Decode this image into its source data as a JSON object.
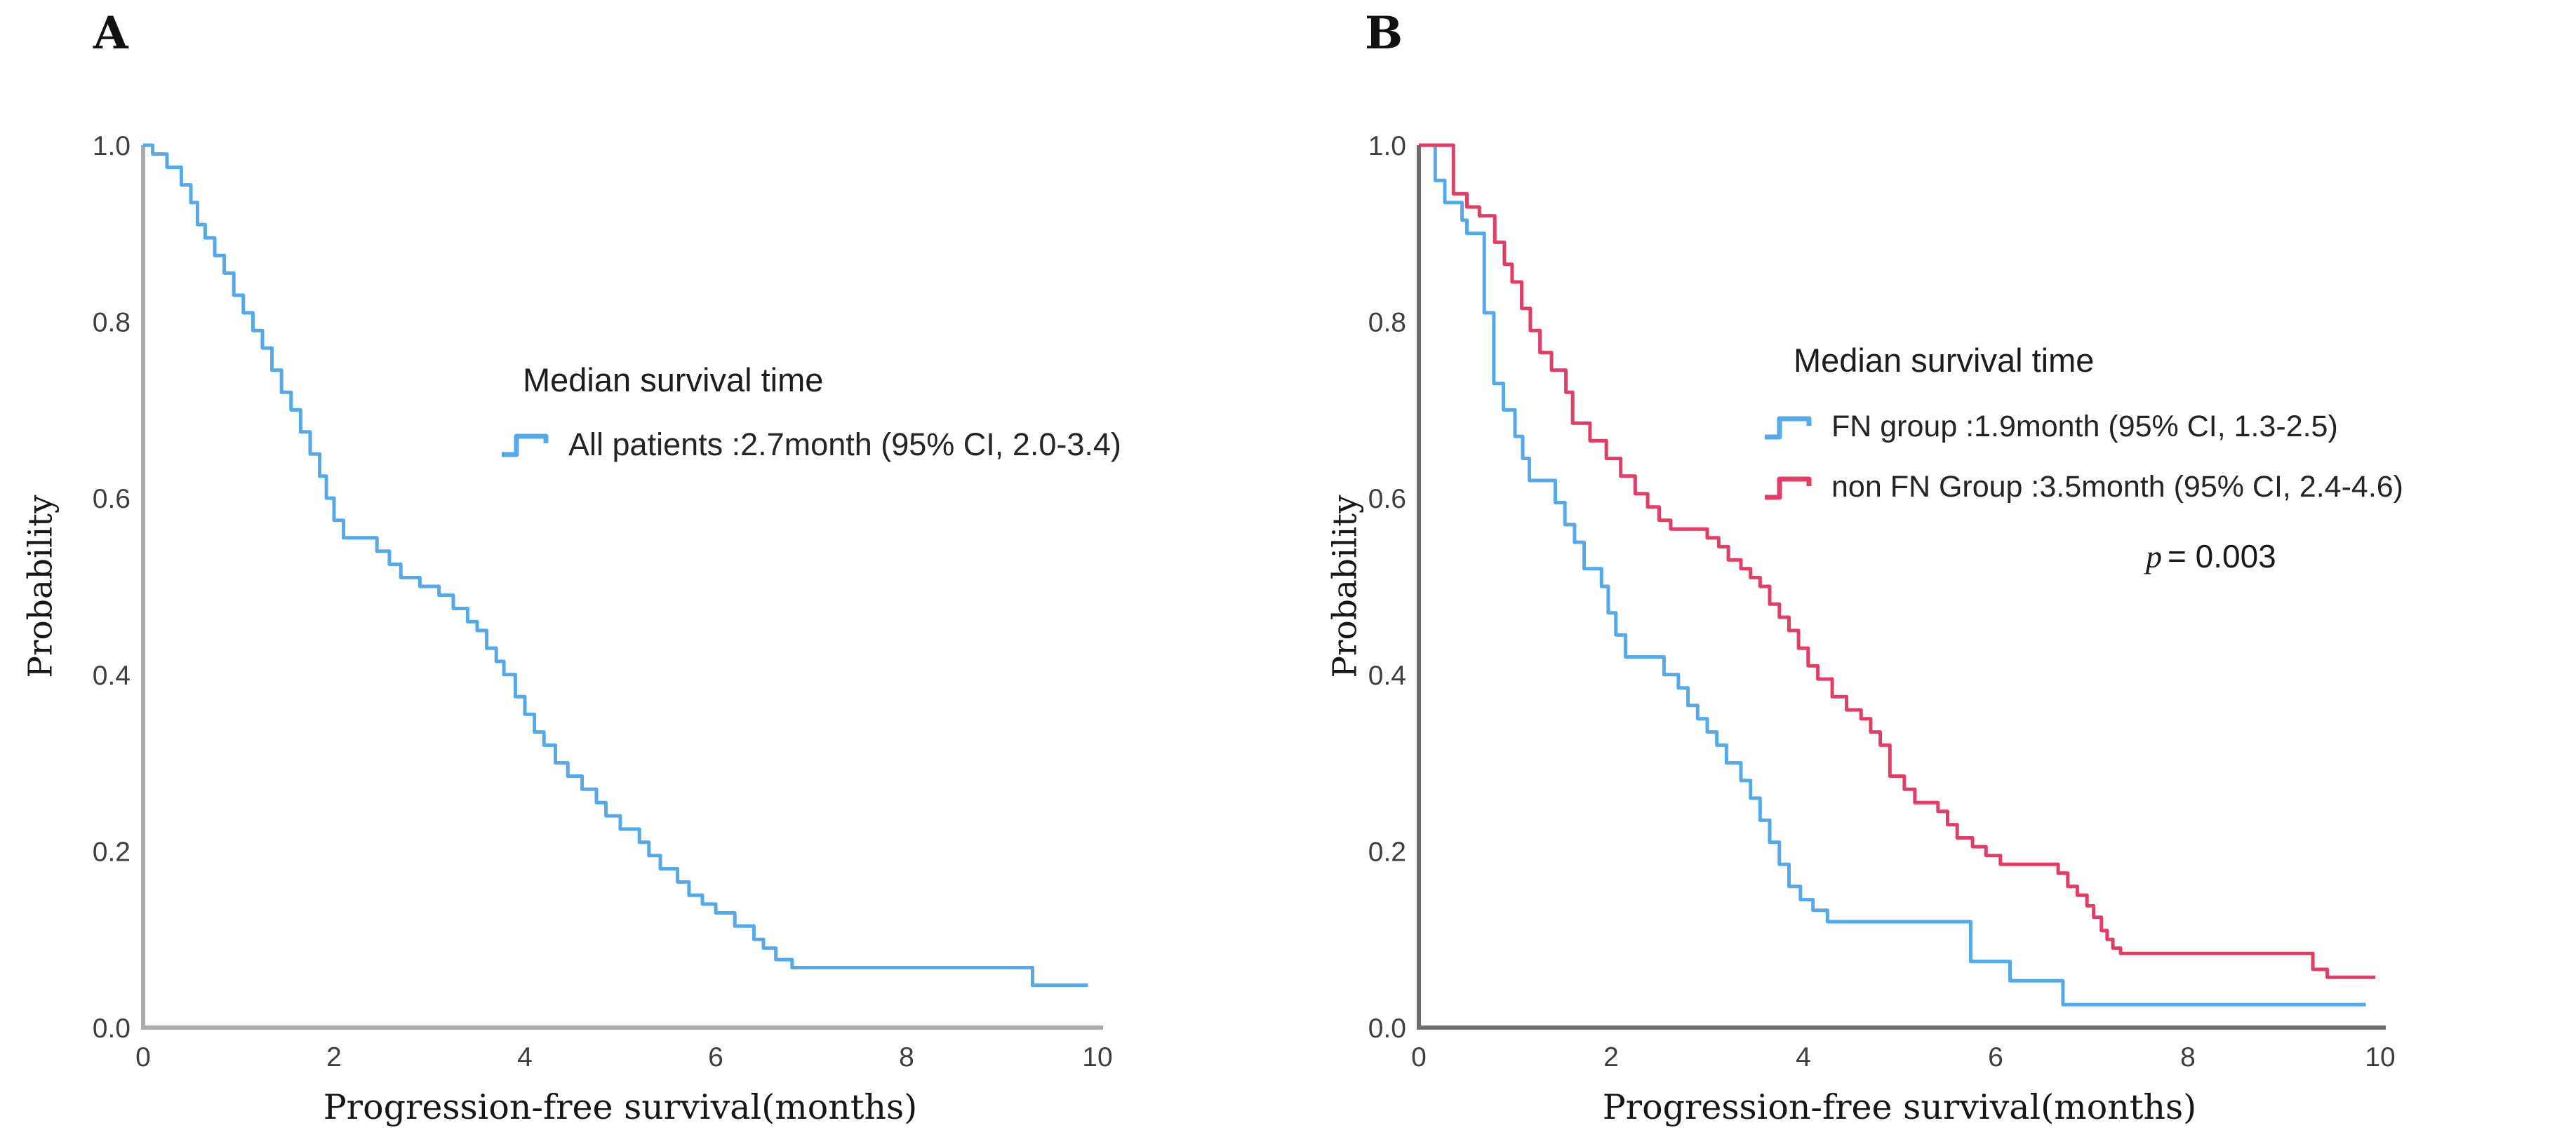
{
  "panels": [
    {
      "panel_label": "A",
      "y_axis_title": "Probability",
      "x_axis_title": "Progression-free survival(months)",
      "legend_title": "Median survival time",
      "legend_items": [
        {
          "label": "All patients :2.7month (95% CI, 2.0-3.4)"
        }
      ]
    },
    {
      "panel_label": "B",
      "y_axis_title": "Probability",
      "x_axis_title": "Progression-free survival(months)",
      "legend_title": "Median survival time",
      "legend_items": [
        {
          "label": "FN group :1.9month (95% CI, 1.3-2.5)"
        },
        {
          "label": "non FN Group :3.5month (95% CI, 2.4-4.6)"
        }
      ],
      "p_value": {
        "symbol": "p",
        "text": "= 0.003"
      }
    }
  ],
  "colors": {
    "all_patients": "#55A9E8",
    "fn_group": "#55A9E8",
    "non_fn_group": "#E03E64",
    "axis_panel_a": "#ABABAB",
    "axis_panel_b": "#6E6E6E",
    "tick_text": "#3E3E3E"
  },
  "chart_data": [
    {
      "type": "line",
      "subtype": "kaplan-meier-step",
      "panel": "A",
      "title": "",
      "xlabel": "Progression-free survival(months)",
      "ylabel": "Probability",
      "xlim": [
        0,
        10
      ],
      "ylim": [
        0,
        1
      ],
      "xticks": [
        "0",
        "2",
        "4",
        "6",
        "8",
        "10"
      ],
      "yticks": [
        "0.0",
        "0.2",
        "0.4",
        "0.6",
        "0.8",
        "1.0"
      ],
      "grid": false,
      "legend_title": "Median survival time",
      "legend_position": "center-right",
      "series": [
        {
          "name": "All patients",
          "label": "All patients :2.7month (95% CI, 2.0-3.4)",
          "median_months": 2.7,
          "ci95": [
            2.0,
            3.4
          ],
          "color": "#55A9E8",
          "points": [
            [
              0,
              1.0
            ],
            [
              0.1,
              0.99
            ],
            [
              0.25,
              0.975
            ],
            [
              0.4,
              0.955
            ],
            [
              0.5,
              0.935
            ],
            [
              0.57,
              0.91
            ],
            [
              0.65,
              0.895
            ],
            [
              0.75,
              0.875
            ],
            [
              0.85,
              0.855
            ],
            [
              0.95,
              0.83
            ],
            [
              1.05,
              0.81
            ],
            [
              1.15,
              0.79
            ],
            [
              1.25,
              0.77
            ],
            [
              1.35,
              0.745
            ],
            [
              1.45,
              0.72
            ],
            [
              1.55,
              0.7
            ],
            [
              1.65,
              0.675
            ],
            [
              1.75,
              0.65
            ],
            [
              1.85,
              0.625
            ],
            [
              1.92,
              0.6
            ],
            [
              2.0,
              0.575
            ],
            [
              2.1,
              0.555
            ],
            [
              2.45,
              0.54
            ],
            [
              2.58,
              0.525
            ],
            [
              2.7,
              0.51
            ],
            [
              2.9,
              0.5
            ],
            [
              3.1,
              0.49
            ],
            [
              3.25,
              0.475
            ],
            [
              3.4,
              0.46
            ],
            [
              3.5,
              0.45
            ],
            [
              3.6,
              0.43
            ],
            [
              3.7,
              0.415
            ],
            [
              3.78,
              0.4
            ],
            [
              3.9,
              0.375
            ],
            [
              4.0,
              0.355
            ],
            [
              4.1,
              0.335
            ],
            [
              4.2,
              0.32
            ],
            [
              4.32,
              0.3
            ],
            [
              4.45,
              0.285
            ],
            [
              4.6,
              0.27
            ],
            [
              4.75,
              0.255
            ],
            [
              4.85,
              0.24
            ],
            [
              5.0,
              0.225
            ],
            [
              5.2,
              0.21
            ],
            [
              5.3,
              0.195
            ],
            [
              5.42,
              0.18
            ],
            [
              5.6,
              0.165
            ],
            [
              5.72,
              0.15
            ],
            [
              5.86,
              0.14
            ],
            [
              6.0,
              0.13
            ],
            [
              6.2,
              0.115
            ],
            [
              6.4,
              0.1
            ],
            [
              6.5,
              0.09
            ],
            [
              6.63,
              0.077
            ],
            [
              6.8,
              0.068
            ],
            [
              9.32,
              0.048
            ],
            [
              9.9,
              0.048
            ]
          ]
        }
      ]
    },
    {
      "type": "line",
      "subtype": "kaplan-meier-step",
      "panel": "B",
      "title": "",
      "xlabel": "Progression-free survival(months)",
      "ylabel": "Probability",
      "xlim": [
        0,
        10
      ],
      "ylim": [
        0,
        1
      ],
      "xticks": [
        "0",
        "2",
        "4",
        "6",
        "8",
        "10"
      ],
      "yticks": [
        "0.0",
        "0.2",
        "0.4",
        "0.6",
        "0.8",
        "1.0"
      ],
      "grid": false,
      "legend_title": "Median survival time",
      "legend_position": "center-right",
      "annotation": "p = 0.003",
      "series": [
        {
          "name": "FN group",
          "label": "FN group :1.9month (95% CI, 1.3-2.5)",
          "median_months": 1.9,
          "ci95": [
            1.3,
            2.5
          ],
          "color": "#55A9E8",
          "points": [
            [
              0,
              1.0
            ],
            [
              0.17,
              0.96
            ],
            [
              0.27,
              0.935
            ],
            [
              0.45,
              0.915
            ],
            [
              0.5,
              0.9
            ],
            [
              0.68,
              0.81
            ],
            [
              0.78,
              0.73
            ],
            [
              0.88,
              0.7
            ],
            [
              1.0,
              0.67
            ],
            [
              1.08,
              0.645
            ],
            [
              1.15,
              0.62
            ],
            [
              1.42,
              0.595
            ],
            [
              1.52,
              0.57
            ],
            [
              1.62,
              0.55
            ],
            [
              1.72,
              0.52
            ],
            [
              1.9,
              0.5
            ],
            [
              1.97,
              0.47
            ],
            [
              2.05,
              0.445
            ],
            [
              2.15,
              0.42
            ],
            [
              2.55,
              0.4
            ],
            [
              2.7,
              0.385
            ],
            [
              2.8,
              0.365
            ],
            [
              2.9,
              0.35
            ],
            [
              3.0,
              0.335
            ],
            [
              3.1,
              0.32
            ],
            [
              3.2,
              0.3
            ],
            [
              3.35,
              0.28
            ],
            [
              3.45,
              0.26
            ],
            [
              3.55,
              0.235
            ],
            [
              3.65,
              0.21
            ],
            [
              3.75,
              0.185
            ],
            [
              3.85,
              0.16
            ],
            [
              3.97,
              0.145
            ],
            [
              4.1,
              0.133
            ],
            [
              4.25,
              0.12
            ],
            [
              5.74,
              0.075
            ],
            [
              6.15,
              0.053
            ],
            [
              6.7,
              0.026
            ],
            [
              9.85,
              0.026
            ]
          ]
        },
        {
          "name": "non FN Group",
          "label": "non FN Group :3.5month (95% CI, 2.4-4.6)",
          "median_months": 3.5,
          "ci95": [
            2.4,
            4.6
          ],
          "color": "#E03E64",
          "points": [
            [
              0,
              1.0
            ],
            [
              0.36,
              0.945
            ],
            [
              0.5,
              0.93
            ],
            [
              0.63,
              0.92
            ],
            [
              0.79,
              0.89
            ],
            [
              0.89,
              0.865
            ],
            [
              0.97,
              0.845
            ],
            [
              1.07,
              0.815
            ],
            [
              1.16,
              0.79
            ],
            [
              1.26,
              0.765
            ],
            [
              1.38,
              0.745
            ],
            [
              1.53,
              0.72
            ],
            [
              1.6,
              0.685
            ],
            [
              1.78,
              0.665
            ],
            [
              1.95,
              0.645
            ],
            [
              2.1,
              0.625
            ],
            [
              2.25,
              0.605
            ],
            [
              2.38,
              0.59
            ],
            [
              2.5,
              0.575
            ],
            [
              2.62,
              0.565
            ],
            [
              3.0,
              0.555
            ],
            [
              3.12,
              0.545
            ],
            [
              3.22,
              0.53
            ],
            [
              3.35,
              0.52
            ],
            [
              3.45,
              0.51
            ],
            [
              3.55,
              0.5
            ],
            [
              3.65,
              0.48
            ],
            [
              3.75,
              0.465
            ],
            [
              3.85,
              0.45
            ],
            [
              3.95,
              0.43
            ],
            [
              4.05,
              0.41
            ],
            [
              4.15,
              0.395
            ],
            [
              4.3,
              0.375
            ],
            [
              4.45,
              0.36
            ],
            [
              4.6,
              0.35
            ],
            [
              4.7,
              0.335
            ],
            [
              4.8,
              0.32
            ],
            [
              4.9,
              0.285
            ],
            [
              5.05,
              0.27
            ],
            [
              5.16,
              0.255
            ],
            [
              5.4,
              0.245
            ],
            [
              5.5,
              0.23
            ],
            [
              5.6,
              0.215
            ],
            [
              5.76,
              0.205
            ],
            [
              5.9,
              0.195
            ],
            [
              6.05,
              0.185
            ],
            [
              6.65,
              0.175
            ],
            [
              6.75,
              0.16
            ],
            [
              6.85,
              0.15
            ],
            [
              6.95,
              0.138
            ],
            [
              7.02,
              0.125
            ],
            [
              7.1,
              0.11
            ],
            [
              7.16,
              0.1
            ],
            [
              7.22,
              0.09
            ],
            [
              7.3,
              0.084
            ],
            [
              9.3,
              0.066
            ],
            [
              9.45,
              0.057
            ],
            [
              9.95,
              0.057
            ]
          ]
        }
      ]
    }
  ]
}
